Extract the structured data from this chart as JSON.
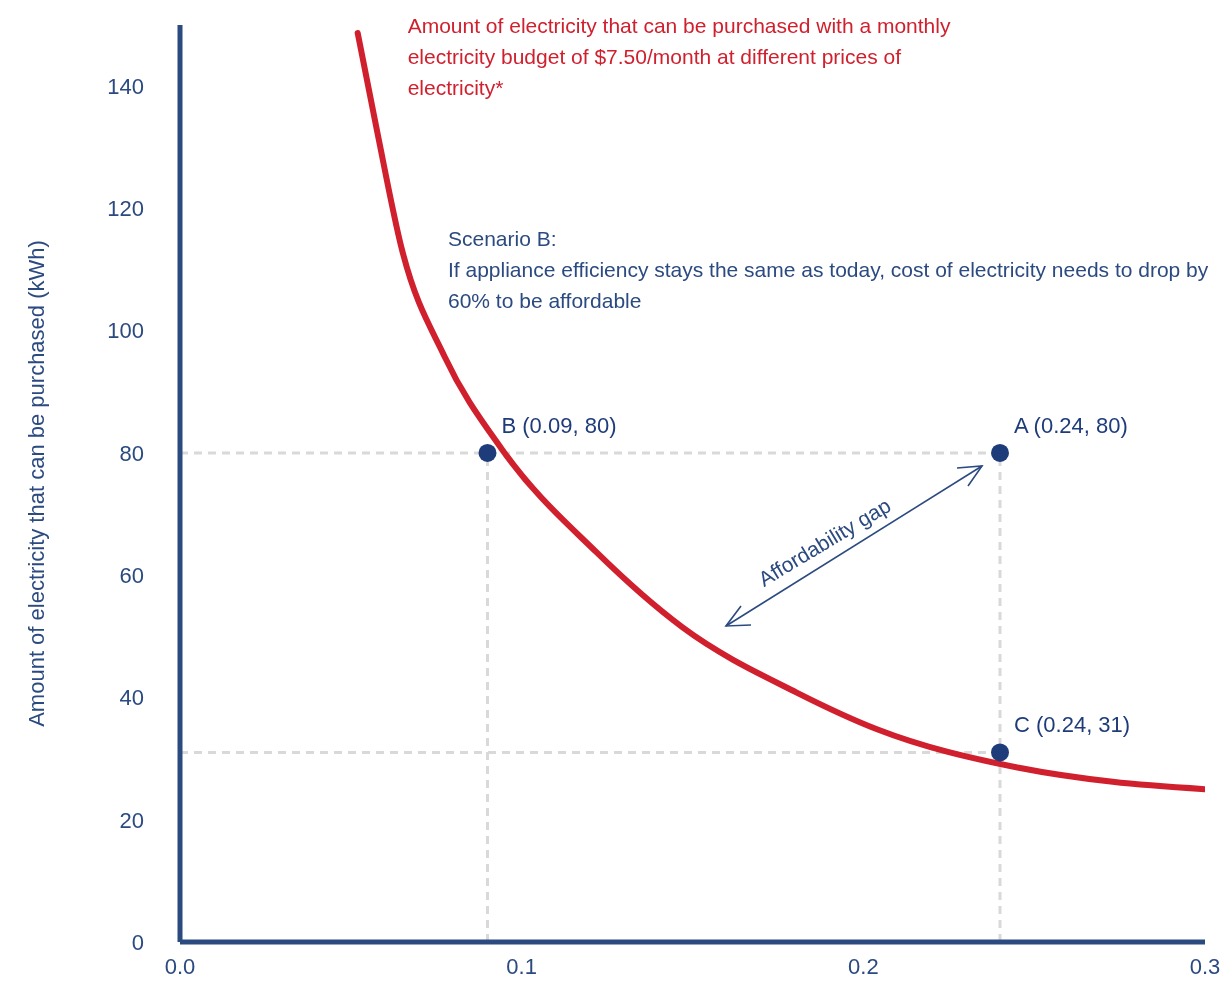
{
  "chart_data": {
    "type": "line",
    "ylabel": "Amount of electricity that can be purchased (kWh)",
    "xlim": [
      0,
      0.3
    ],
    "xticks": [
      {
        "value": 0,
        "label": "0.0"
      },
      0.1,
      0.2,
      0.3
    ],
    "ylim": [
      0,
      150
    ],
    "yticks": [
      0,
      20,
      40,
      60,
      80,
      100,
      120,
      140
    ],
    "grid": false,
    "legend": false,
    "series": [
      {
        "name": "Amount of electricity that can be purchased with a monthly electricity budget of $7.50/month at different prices of electricity*",
        "color": "#d0202e",
        "marker": "none",
        "line_style": "solid",
        "x": [
          0.052,
          0.0577,
          0.0649,
          0.0775,
          0.0941,
          0.1218,
          0.147,
          0.1805,
          0.204,
          0.2455,
          0.273,
          0.3
        ],
        "values": [
          148.7,
          132.6,
          113.4,
          95.7,
          80.7,
          63.8,
          51.5,
          40.8,
          34.8,
          28.5,
          26.2,
          25
        ]
      },
      {
        "type": "scatter",
        "color": "#1f3c7a",
        "marker": "circle",
        "x": [
          0.24,
          0.09,
          0.24
        ],
        "values": [
          80,
          80,
          31
        ],
        "value_labels": [
          "A (0.24, 80)",
          "B (0.09, 80)",
          "C (0.24, 31)"
        ]
      }
    ],
    "ref_lines": [
      {
        "axis": "y",
        "value": 80,
        "color": "#d9d9d9",
        "line_style": "dashed"
      },
      {
        "axis": "y",
        "value": 31,
        "color": "#d9d9d9",
        "line_style": "dashed"
      },
      {
        "axis": "x",
        "value": 0.09,
        "color": "#d9d9d9",
        "line_style": "dashed"
      },
      {
        "axis": "x",
        "value": 0.24,
        "color": "#d9d9d9",
        "line_style": "dashed"
      }
    ],
    "annotations": [
      "Scenario B:",
      "If appliance efficiency stays the same as today, cost of electricity needs to drop by 60% to be affordable",
      "Affordability gap"
    ]
  }
}
